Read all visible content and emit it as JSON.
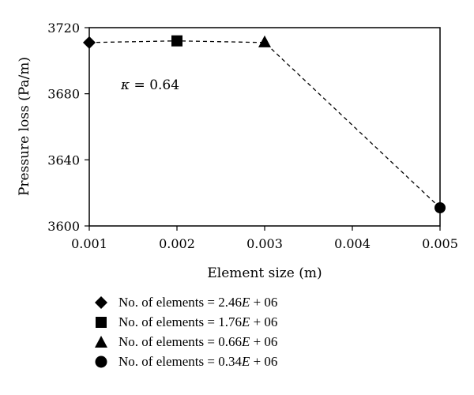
{
  "chart_data": {
    "type": "scatter",
    "title": "",
    "xlabel": "Element size (m)",
    "ylabel": "Pressure loss (Pa/m)",
    "xlim": [
      0.001,
      0.005
    ],
    "ylim": [
      3600,
      3720
    ],
    "xticks": [
      "0.001",
      "0.002",
      "0.003",
      "0.004",
      "0.005"
    ],
    "yticks": [
      "3600",
      "3640",
      "3680",
      "3720"
    ],
    "grid": false,
    "connector": "dashed",
    "annotation": {
      "symbol": "κ",
      "text": " = 0.64"
    },
    "points": [
      {
        "x": 0.001,
        "y": 3711,
        "marker": "diamond",
        "label_prefix": "No. of elements = 2.46",
        "label_e": "E",
        "label_suffix": " + 06"
      },
      {
        "x": 0.002,
        "y": 3712,
        "marker": "square",
        "label_prefix": "No. of elements = 1.76",
        "label_e": "E",
        "label_suffix": " + 06"
      },
      {
        "x": 0.003,
        "y": 3711,
        "marker": "triangle",
        "label_prefix": "No. of elements = 0.66",
        "label_e": "E",
        "label_suffix": " + 06"
      },
      {
        "x": 0.005,
        "y": 3611,
        "marker": "circle",
        "label_prefix": "No. of elements = 0.34",
        "label_e": "E",
        "label_suffix": " + 06"
      }
    ],
    "colors": {
      "marker": "#000000",
      "line": "#000000"
    }
  }
}
